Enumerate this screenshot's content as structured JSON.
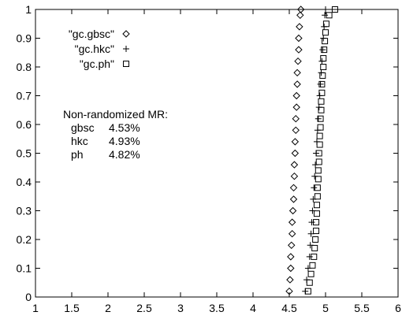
{
  "chart_data": {
    "type": "scatter",
    "title": "",
    "xlabel": "",
    "ylabel": "",
    "xlim": [
      1,
      6
    ],
    "ylim": [
      0,
      1
    ],
    "grid": false,
    "legend_placement": "top-left",
    "x_ticks": [
      1,
      1.5,
      2,
      2.5,
      3,
      3.5,
      4,
      4.5,
      5,
      5.5,
      6
    ],
    "y_ticks": [
      0,
      0.1,
      0.2,
      0.3,
      0.4,
      0.5,
      0.6,
      0.7,
      0.8,
      0.9,
      1
    ],
    "series": [
      {
        "name": "\"gc.gbsc\"",
        "marker": "diamond",
        "points": [
          [
            4.5,
            0.02
          ],
          [
            4.51,
            0.06
          ],
          [
            4.52,
            0.1
          ],
          [
            4.52,
            0.14
          ],
          [
            4.53,
            0.18
          ],
          [
            4.54,
            0.22
          ],
          [
            4.54,
            0.26
          ],
          [
            4.55,
            0.3
          ],
          [
            4.56,
            0.34
          ],
          [
            4.56,
            0.38
          ],
          [
            4.57,
            0.42
          ],
          [
            4.57,
            0.46
          ],
          [
            4.58,
            0.5
          ],
          [
            4.58,
            0.54
          ],
          [
            4.59,
            0.58
          ],
          [
            4.59,
            0.62
          ],
          [
            4.6,
            0.66
          ],
          [
            4.6,
            0.7
          ],
          [
            4.61,
            0.74
          ],
          [
            4.61,
            0.78
          ],
          [
            4.62,
            0.82
          ],
          [
            4.63,
            0.86
          ],
          [
            4.63,
            0.9
          ],
          [
            4.64,
            0.94
          ],
          [
            4.65,
            0.98
          ],
          [
            4.66,
            1.0
          ]
        ]
      },
      {
        "name": "\"gc.hkc\"",
        "marker": "plus",
        "points": [
          [
            4.72,
            0.02
          ],
          [
            4.74,
            0.06
          ],
          [
            4.76,
            0.1
          ],
          [
            4.78,
            0.14
          ],
          [
            4.79,
            0.18
          ],
          [
            4.8,
            0.22
          ],
          [
            4.81,
            0.26
          ],
          [
            4.82,
            0.3
          ],
          [
            4.83,
            0.34
          ],
          [
            4.84,
            0.38
          ],
          [
            4.85,
            0.42
          ],
          [
            4.86,
            0.46
          ],
          [
            4.87,
            0.5
          ],
          [
            4.88,
            0.54
          ],
          [
            4.89,
            0.58
          ],
          [
            4.9,
            0.62
          ],
          [
            4.91,
            0.66
          ],
          [
            4.92,
            0.7
          ],
          [
            4.93,
            0.74
          ],
          [
            4.94,
            0.78
          ],
          [
            4.95,
            0.82
          ],
          [
            4.96,
            0.86
          ],
          [
            4.97,
            0.9
          ],
          [
            4.98,
            0.94
          ],
          [
            4.99,
            0.98
          ],
          [
            5.0,
            1.0
          ]
        ]
      },
      {
        "name": "\"gc.ph\"",
        "marker": "square",
        "points": [
          [
            4.76,
            0.02
          ],
          [
            4.78,
            0.05
          ],
          [
            4.8,
            0.08
          ],
          [
            4.82,
            0.11
          ],
          [
            4.84,
            0.14
          ],
          [
            4.85,
            0.17
          ],
          [
            4.86,
            0.2
          ],
          [
            4.87,
            0.23
          ],
          [
            4.87,
            0.26
          ],
          [
            4.88,
            0.29
          ],
          [
            4.88,
            0.32
          ],
          [
            4.89,
            0.35
          ],
          [
            4.89,
            0.38
          ],
          [
            4.9,
            0.41
          ],
          [
            4.9,
            0.44
          ],
          [
            4.91,
            0.47
          ],
          [
            4.91,
            0.5
          ],
          [
            4.92,
            0.53
          ],
          [
            4.92,
            0.56
          ],
          [
            4.93,
            0.59
          ],
          [
            4.93,
            0.62
          ],
          [
            4.94,
            0.65
          ],
          [
            4.94,
            0.68
          ],
          [
            4.95,
            0.71
          ],
          [
            4.95,
            0.74
          ],
          [
            4.96,
            0.77
          ],
          [
            4.97,
            0.8
          ],
          [
            4.97,
            0.83
          ],
          [
            4.98,
            0.86
          ],
          [
            4.99,
            0.89
          ],
          [
            5.0,
            0.92
          ],
          [
            5.01,
            0.95
          ],
          [
            5.05,
            0.98
          ],
          [
            5.13,
            1.0
          ]
        ]
      }
    ],
    "annotation": {
      "heading": "Non-randomized MR:",
      "rows": [
        {
          "label": "gbsc",
          "value": "4.53%"
        },
        {
          "label": "hkc",
          "value": "4.93%"
        },
        {
          "label": "ph",
          "value": "4.82%"
        }
      ]
    }
  }
}
